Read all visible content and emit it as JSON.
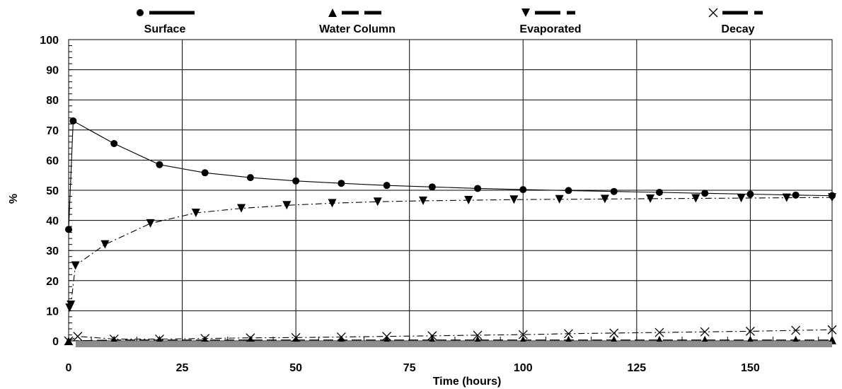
{
  "chart_data": {
    "type": "line",
    "xlabel": "Time (hours)",
    "ylabel": "%",
    "xlim": [
      0,
      168
    ],
    "ylim": [
      0,
      100
    ],
    "xticks": [
      0,
      25,
      50,
      75,
      100,
      125,
      150
    ],
    "yticks": [
      0,
      10,
      20,
      30,
      40,
      50,
      60,
      70,
      80,
      90,
      100
    ],
    "grid": true,
    "legend_position": "top",
    "series": [
      {
        "name": "Surface",
        "marker": "circle",
        "dash": "solid",
        "x": [
          0,
          1,
          10,
          20,
          30,
          40,
          50,
          60,
          70,
          80,
          90,
          100,
          110,
          120,
          130,
          140,
          150,
          160,
          168
        ],
        "y": [
          37,
          73,
          65.5,
          58.5,
          55.8,
          54.2,
          53.1,
          52.3,
          51.6,
          51.1,
          50.6,
          50.2,
          49.9,
          49.6,
          49.3,
          49.0,
          48.7,
          48.4,
          48.2
        ]
      },
      {
        "name": "Water Column",
        "marker": "triangle-up",
        "dash": "dash",
        "x": [
          0,
          10,
          20,
          30,
          40,
          50,
          60,
          70,
          80,
          90,
          100,
          110,
          120,
          130,
          140,
          150,
          160,
          168
        ],
        "y": [
          0,
          0.3,
          0.3,
          0.3,
          0.3,
          0.3,
          0.3,
          0.3,
          0.3,
          0.3,
          0.3,
          0.3,
          0.3,
          0.3,
          0.3,
          0.3,
          0.3,
          0.3
        ]
      },
      {
        "name": "Evaporated",
        "marker": "triangle-down",
        "dash": "dashdot",
        "x": [
          0.2,
          0.5,
          1.5,
          8,
          18,
          28,
          38,
          48,
          58,
          68,
          78,
          88,
          98,
          108,
          118,
          128,
          138,
          148,
          158,
          168
        ],
        "y": [
          11,
          12,
          25,
          32,
          39,
          42.5,
          44,
          45,
          45.7,
          46.2,
          46.5,
          46.7,
          46.9,
          47.0,
          47.1,
          47.2,
          47.3,
          47.4,
          47.5,
          47.6
        ]
      },
      {
        "name": "Decay",
        "marker": "x",
        "dash": "dashdot",
        "x": [
          0,
          2,
          10,
          20,
          30,
          40,
          50,
          60,
          70,
          80,
          90,
          100,
          110,
          120,
          130,
          140,
          150,
          160,
          168
        ],
        "y": [
          0,
          1.5,
          0.6,
          0.6,
          0.8,
          1.0,
          1.1,
          1.3,
          1.5,
          1.7,
          1.9,
          2.1,
          2.4,
          2.6,
          2.8,
          3.0,
          3.2,
          3.5,
          3.7
        ]
      }
    ]
  }
}
